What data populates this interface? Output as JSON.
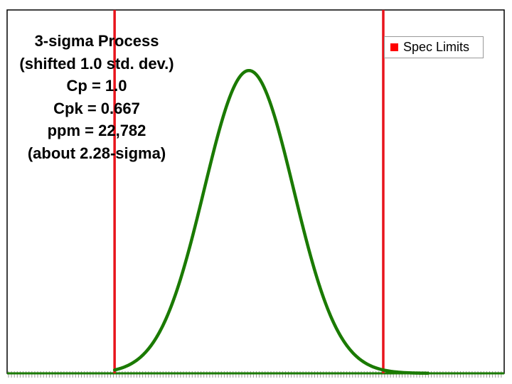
{
  "chart_data": {
    "type": "line",
    "title": "",
    "xlabel": "",
    "ylabel": "",
    "annotation_lines": [
      "3-sigma Process",
      "(shifted 1.0 std. dev.)",
      "Cp = 1.0",
      "Cpk = 0.667",
      "ppm = 22,782",
      "(about 2.28-sigma)"
    ],
    "xlim": [
      -4.4,
      6.7
    ],
    "ylim": [
      0,
      1.2
    ],
    "series": [
      {
        "color": "#1a7a00",
        "mean": 1.0,
        "std": 1.0,
        "peak": 1.0,
        "x": [
          -2.0,
          -1.5,
          -1.0,
          -0.5,
          0.0,
          0.25,
          0.5,
          0.75,
          1.0,
          1.25,
          1.5,
          1.75,
          2.0,
          2.5,
          3.0,
          3.5,
          4.0,
          4.5,
          5.0
        ],
        "y": [
          0.011,
          0.044,
          0.135,
          0.325,
          0.607,
          0.755,
          0.882,
          0.969,
          1.0,
          0.969,
          0.882,
          0.755,
          0.607,
          0.325,
          0.135,
          0.044,
          0.011,
          0.002,
          0.0
        ]
      },
      {
        "name": "Spec Limits",
        "color": "#e8141c",
        "type": "vline",
        "x": [
          -2.0,
          4.0
        ]
      }
    ],
    "legend": {
      "position": "top-right",
      "label": "Spec Limits",
      "color": "#ff0000"
    },
    "grid": false,
    "x_minor_ticks": true
  }
}
